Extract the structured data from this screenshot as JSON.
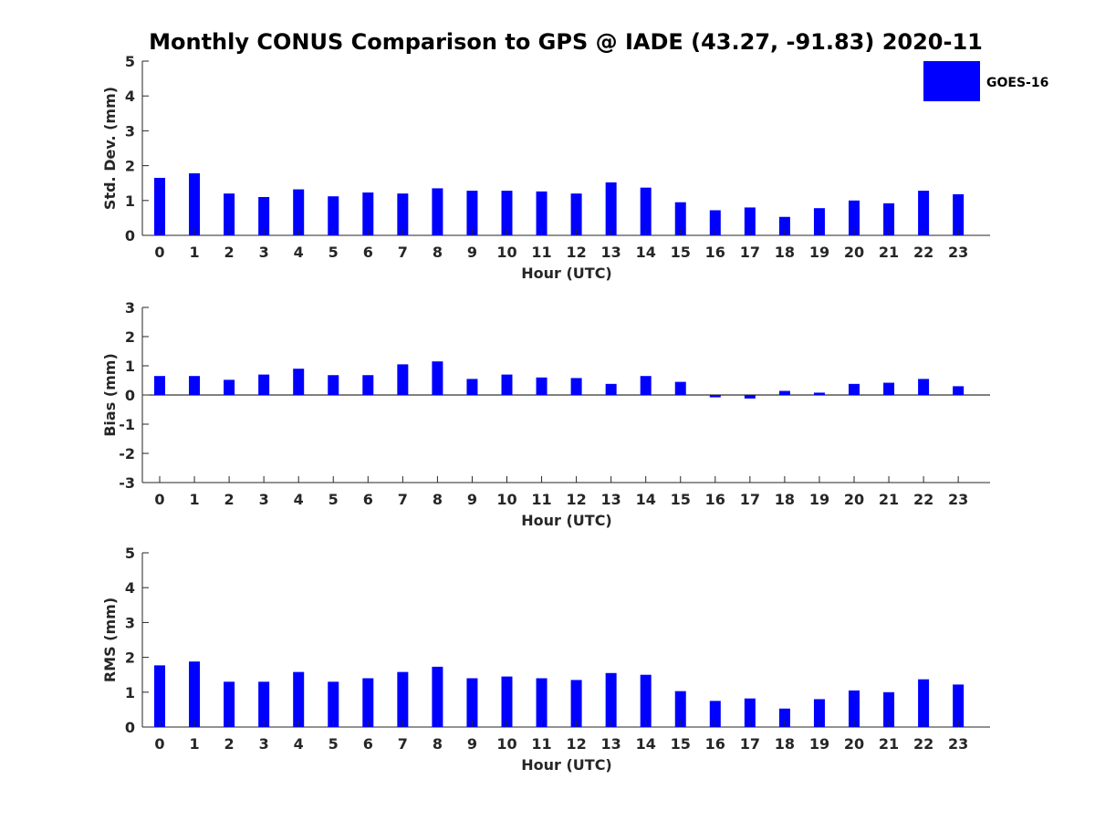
{
  "title": "Monthly CONUS Comparison to GPS @ IADE (43.27, -91.83) 2020-11",
  "legend": {
    "label": "GOES-16",
    "color": "#0000ff"
  },
  "chart_data": [
    {
      "type": "bar",
      "title": "Monthly CONUS Comparison to GPS @ IADE (43.27, -91.83) 2020-11",
      "xlabel": "Hour (UTC)",
      "ylabel": "Std. Dev. (mm)",
      "ylim": [
        0,
        5
      ],
      "yticks": [
        0,
        1,
        2,
        3,
        4,
        5
      ],
      "categories": [
        "0",
        "1",
        "2",
        "3",
        "4",
        "5",
        "6",
        "7",
        "8",
        "9",
        "10",
        "11",
        "12",
        "13",
        "14",
        "15",
        "16",
        "17",
        "18",
        "19",
        "20",
        "21",
        "22",
        "23"
      ],
      "series": [
        {
          "name": "GOES-16",
          "color": "#0000ff",
          "values": [
            1.65,
            1.78,
            1.2,
            1.1,
            1.32,
            1.12,
            1.23,
            1.2,
            1.35,
            1.28,
            1.28,
            1.26,
            1.2,
            1.52,
            1.37,
            0.95,
            0.72,
            0.8,
            0.53,
            0.78,
            1.0,
            0.92,
            1.28,
            1.18
          ]
        }
      ]
    },
    {
      "type": "bar",
      "xlabel": "Hour (UTC)",
      "ylabel": "Bias (mm)",
      "ylim": [
        -3,
        3
      ],
      "yticks": [
        -3,
        -2,
        -1,
        0,
        1,
        2,
        3
      ],
      "categories": [
        "0",
        "1",
        "2",
        "3",
        "4",
        "5",
        "6",
        "7",
        "8",
        "9",
        "10",
        "11",
        "12",
        "13",
        "14",
        "15",
        "16",
        "17",
        "18",
        "19",
        "20",
        "21",
        "22",
        "23"
      ],
      "series": [
        {
          "name": "GOES-16",
          "color": "#0000ff",
          "values": [
            0.65,
            0.65,
            0.52,
            0.7,
            0.9,
            0.68,
            0.68,
            1.05,
            1.15,
            0.55,
            0.7,
            0.6,
            0.58,
            0.38,
            0.65,
            0.45,
            -0.08,
            -0.12,
            0.14,
            0.08,
            0.38,
            0.42,
            0.55,
            0.3
          ]
        }
      ]
    },
    {
      "type": "bar",
      "xlabel": "Hour (UTC)",
      "ylabel": "RMS (mm)",
      "ylim": [
        0,
        5
      ],
      "yticks": [
        0,
        1,
        2,
        3,
        4,
        5
      ],
      "categories": [
        "0",
        "1",
        "2",
        "3",
        "4",
        "5",
        "6",
        "7",
        "8",
        "9",
        "10",
        "11",
        "12",
        "13",
        "14",
        "15",
        "16",
        "17",
        "18",
        "19",
        "20",
        "21",
        "22",
        "23"
      ],
      "series": [
        {
          "name": "GOES-16",
          "color": "#0000ff",
          "values": [
            1.77,
            1.88,
            1.3,
            1.3,
            1.58,
            1.3,
            1.4,
            1.58,
            1.73,
            1.4,
            1.45,
            1.4,
            1.35,
            1.55,
            1.5,
            1.03,
            0.75,
            0.82,
            0.53,
            0.8,
            1.05,
            1.0,
            1.37,
            1.22
          ]
        }
      ]
    }
  ]
}
